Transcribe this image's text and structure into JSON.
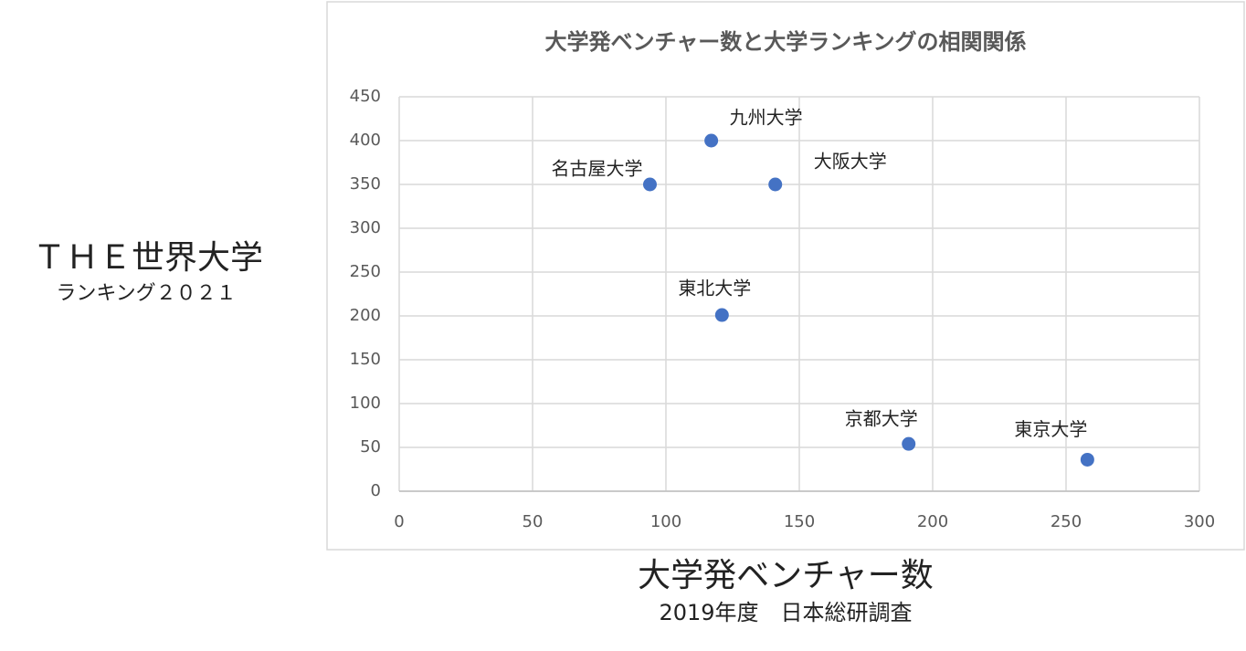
{
  "chart_data": {
    "type": "scatter",
    "title": "大学発ベンチャー数と大学ランキングの相関関係",
    "x_label": "大学発ベンチャー数",
    "x_label_note": "2019年度　日本総研調査",
    "y_label": "ＴＨＥ世界大学",
    "y_label_note": "ランキング２０２１",
    "series": [
      {
        "color": "#4472c4",
        "x": [
          117,
          94,
          141,
          121,
          191,
          258
        ],
        "values": [
          400,
          350,
          350,
          201,
          54,
          36
        ],
        "labels": [
          "九州大学",
          "名古屋大学",
          "大阪大学",
          "東北大学",
          "京都大学",
          "東京大学"
        ]
      }
    ],
    "xlim": [
      0,
      300
    ],
    "xticks": [
      0,
      50,
      100,
      150,
      200,
      250,
      300
    ],
    "ylim": [
      0,
      450
    ],
    "yticks": [
      0,
      50,
      100,
      150,
      200,
      250,
      300,
      350,
      400,
      450
    ],
    "grid": true
  }
}
